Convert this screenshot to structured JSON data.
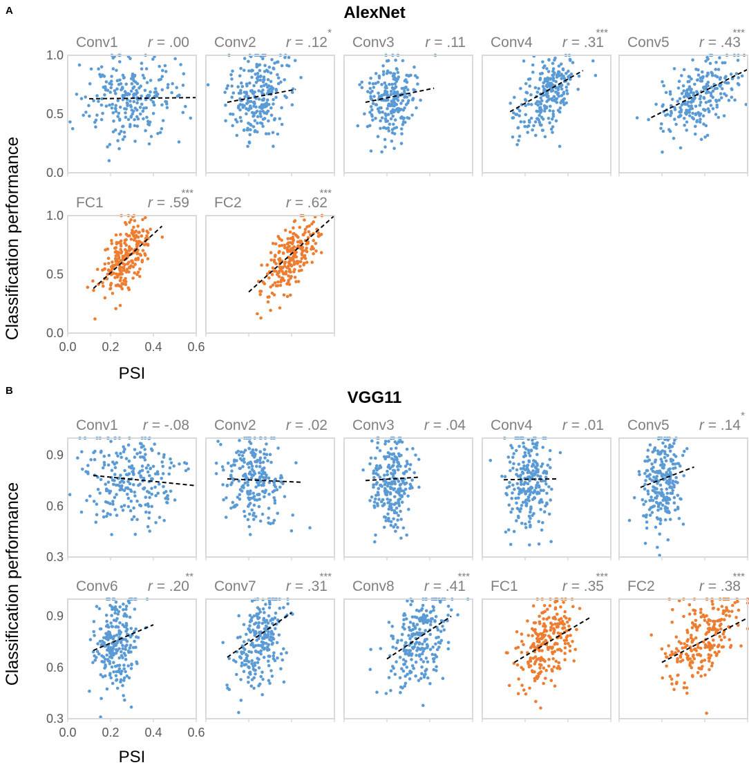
{
  "chart_data": [
    {
      "panel_label": "A",
      "title": "AlexNet",
      "type": "scatter",
      "xlabel": "PSI",
      "ylabel": "Classification performance",
      "xlim": [
        0.0,
        0.6
      ],
      "ylim": [
        0.0,
        1.0
      ],
      "xticks": [
        "0.0",
        "0.2",
        "0.4",
        "0.6"
      ],
      "yticks": [
        "0.0",
        "0.5",
        "1.0"
      ],
      "colors": {
        "conv": "#5b9bd5",
        "fc": "#ed7d31"
      },
      "subplots": [
        {
          "name": "Conv1",
          "r_prefix": "r",
          "r_value": " = .00",
          "stars": "",
          "kind": "conv",
          "trend": [
            [
              0.1,
              0.63
            ],
            [
              0.6,
              0.64
            ]
          ],
          "psi_center": 0.3,
          "psi_spread": 0.11,
          "perf_center": 0.63,
          "perf_spread": 0.18,
          "slope": 0.0
        },
        {
          "name": "Conv2",
          "r_prefix": "r",
          "r_value": " = .12",
          "stars": "*",
          "kind": "conv",
          "trend": [
            [
              0.1,
              0.6
            ],
            [
              0.42,
              0.71
            ]
          ],
          "psi_center": 0.24,
          "psi_spread": 0.07,
          "perf_center": 0.65,
          "perf_spread": 0.17,
          "slope": 0.35
        },
        {
          "name": "Conv3",
          "r_prefix": "r",
          "r_value": " = .11",
          "stars": "",
          "kind": "conv",
          "trend": [
            [
              0.1,
              0.6
            ],
            [
              0.42,
              0.72
            ]
          ],
          "psi_center": 0.22,
          "psi_spread": 0.06,
          "perf_center": 0.63,
          "perf_spread": 0.17,
          "slope": 0.4
        },
        {
          "name": "Conv4",
          "r_prefix": "r",
          "r_value": " = .31",
          "stars": "***",
          "kind": "conv",
          "trend": [
            [
              0.13,
              0.52
            ],
            [
              0.47,
              0.87
            ]
          ],
          "psi_center": 0.3,
          "psi_spread": 0.07,
          "perf_center": 0.65,
          "perf_spread": 0.16,
          "slope": 1.0
        },
        {
          "name": "Conv5",
          "r_prefix": "r",
          "r_value": " = .43",
          "stars": "***",
          "kind": "conv",
          "trend": [
            [
              0.15,
              0.47
            ],
            [
              0.6,
              0.88
            ]
          ],
          "psi_center": 0.37,
          "psi_spread": 0.09,
          "perf_center": 0.65,
          "perf_spread": 0.15,
          "slope": 0.95
        },
        {
          "name": "FC1",
          "r_prefix": "r",
          "r_value": " = .59",
          "stars": "***",
          "kind": "fc",
          "trend": [
            [
              0.12,
              0.38
            ],
            [
              0.44,
              0.91
            ]
          ],
          "psi_center": 0.27,
          "psi_spread": 0.06,
          "perf_center": 0.64,
          "perf_spread": 0.14,
          "slope": 1.7
        },
        {
          "name": "FC2",
          "r_prefix": "r",
          "r_value": " = .62",
          "stars": "***",
          "kind": "fc",
          "trend": [
            [
              0.2,
              0.35
            ],
            [
              0.6,
              1.0
            ]
          ],
          "psi_center": 0.4,
          "psi_spread": 0.07,
          "perf_center": 0.65,
          "perf_spread": 0.13,
          "slope": 1.6
        }
      ]
    },
    {
      "panel_label": "B",
      "title": "VGG11",
      "type": "scatter",
      "xlabel": "PSI",
      "ylabel": "Classification performance",
      "xlim": [
        0.0,
        0.6
      ],
      "ylim": [
        0.3,
        1.0
      ],
      "xticks": [
        "0.0",
        "0.2",
        "0.4",
        "0.6"
      ],
      "yticks": [
        "0.3",
        "0.6",
        "0.9"
      ],
      "colors": {
        "conv": "#5b9bd5",
        "fc": "#ed7d31"
      },
      "subplots": [
        {
          "name": "Conv1",
          "r_prefix": "r",
          "r_value": " = -.08",
          "stars": "",
          "kind": "conv",
          "trend": [
            [
              0.12,
              0.78
            ],
            [
              0.6,
              0.72
            ]
          ],
          "psi_center": 0.3,
          "psi_spread": 0.11,
          "perf_center": 0.75,
          "perf_spread": 0.14,
          "slope": -0.1
        },
        {
          "name": "Conv2",
          "r_prefix": "r",
          "r_value": " = .02",
          "stars": "",
          "kind": "conv",
          "trend": [
            [
              0.1,
              0.76
            ],
            [
              0.45,
              0.74
            ]
          ],
          "psi_center": 0.22,
          "psi_spread": 0.07,
          "perf_center": 0.75,
          "perf_spread": 0.14,
          "slope": 0.0
        },
        {
          "name": "Conv3",
          "r_prefix": "r",
          "r_value": " = .04",
          "stars": "",
          "kind": "conv",
          "trend": [
            [
              0.1,
              0.75
            ],
            [
              0.35,
              0.77
            ]
          ],
          "psi_center": 0.22,
          "psi_spread": 0.05,
          "perf_center": 0.75,
          "perf_spread": 0.14,
          "slope": 0.05
        },
        {
          "name": "Conv4",
          "r_prefix": "r",
          "r_value": " = .01",
          "stars": "",
          "kind": "conv",
          "trend": [
            [
              0.1,
              0.755
            ],
            [
              0.35,
              0.76
            ]
          ],
          "psi_center": 0.22,
          "psi_spread": 0.05,
          "perf_center": 0.75,
          "perf_spread": 0.14,
          "slope": 0.0
        },
        {
          "name": "Conv5",
          "r_prefix": "r",
          "r_value": " = .14",
          "stars": "*",
          "kind": "conv",
          "trend": [
            [
              0.1,
              0.71
            ],
            [
              0.35,
              0.83
            ]
          ],
          "psi_center": 0.2,
          "psi_spread": 0.045,
          "perf_center": 0.75,
          "perf_spread": 0.14,
          "slope": 0.4
        },
        {
          "name": "Conv6",
          "r_prefix": "r",
          "r_value": " = .20",
          "stars": "**",
          "kind": "conv",
          "trend": [
            [
              0.12,
              0.7
            ],
            [
              0.4,
              0.85
            ]
          ],
          "psi_center": 0.23,
          "psi_spread": 0.05,
          "perf_center": 0.75,
          "perf_spread": 0.14,
          "slope": 0.5
        },
        {
          "name": "Conv7",
          "r_prefix": "r",
          "r_value": " = .31",
          "stars": "***",
          "kind": "conv",
          "trend": [
            [
              0.1,
              0.66
            ],
            [
              0.4,
              0.92
            ]
          ],
          "psi_center": 0.25,
          "psi_spread": 0.06,
          "perf_center": 0.76,
          "perf_spread": 0.14,
          "slope": 0.8
        },
        {
          "name": "Conv8",
          "r_prefix": "r",
          "r_value": " = .41",
          "stars": "***",
          "kind": "conv",
          "trend": [
            [
              0.2,
              0.65
            ],
            [
              0.5,
              0.9
            ]
          ],
          "psi_center": 0.35,
          "psi_spread": 0.07,
          "perf_center": 0.76,
          "perf_spread": 0.13,
          "slope": 0.8
        },
        {
          "name": "FC1",
          "r_prefix": "r",
          "r_value": " = .35",
          "stars": "***",
          "kind": "fc",
          "trend": [
            [
              0.15,
              0.63
            ],
            [
              0.5,
              0.89
            ]
          ],
          "psi_center": 0.3,
          "psi_spread": 0.07,
          "perf_center": 0.76,
          "perf_spread": 0.13,
          "slope": 0.75
        },
        {
          "name": "FC2",
          "r_prefix": "r",
          "r_value": " = .38",
          "stars": "***",
          "kind": "fc",
          "trend": [
            [
              0.2,
              0.63
            ],
            [
              0.6,
              0.89
            ]
          ],
          "psi_center": 0.38,
          "psi_spread": 0.09,
          "perf_center": 0.76,
          "perf_spread": 0.13,
          "slope": 0.65
        }
      ]
    }
  ]
}
